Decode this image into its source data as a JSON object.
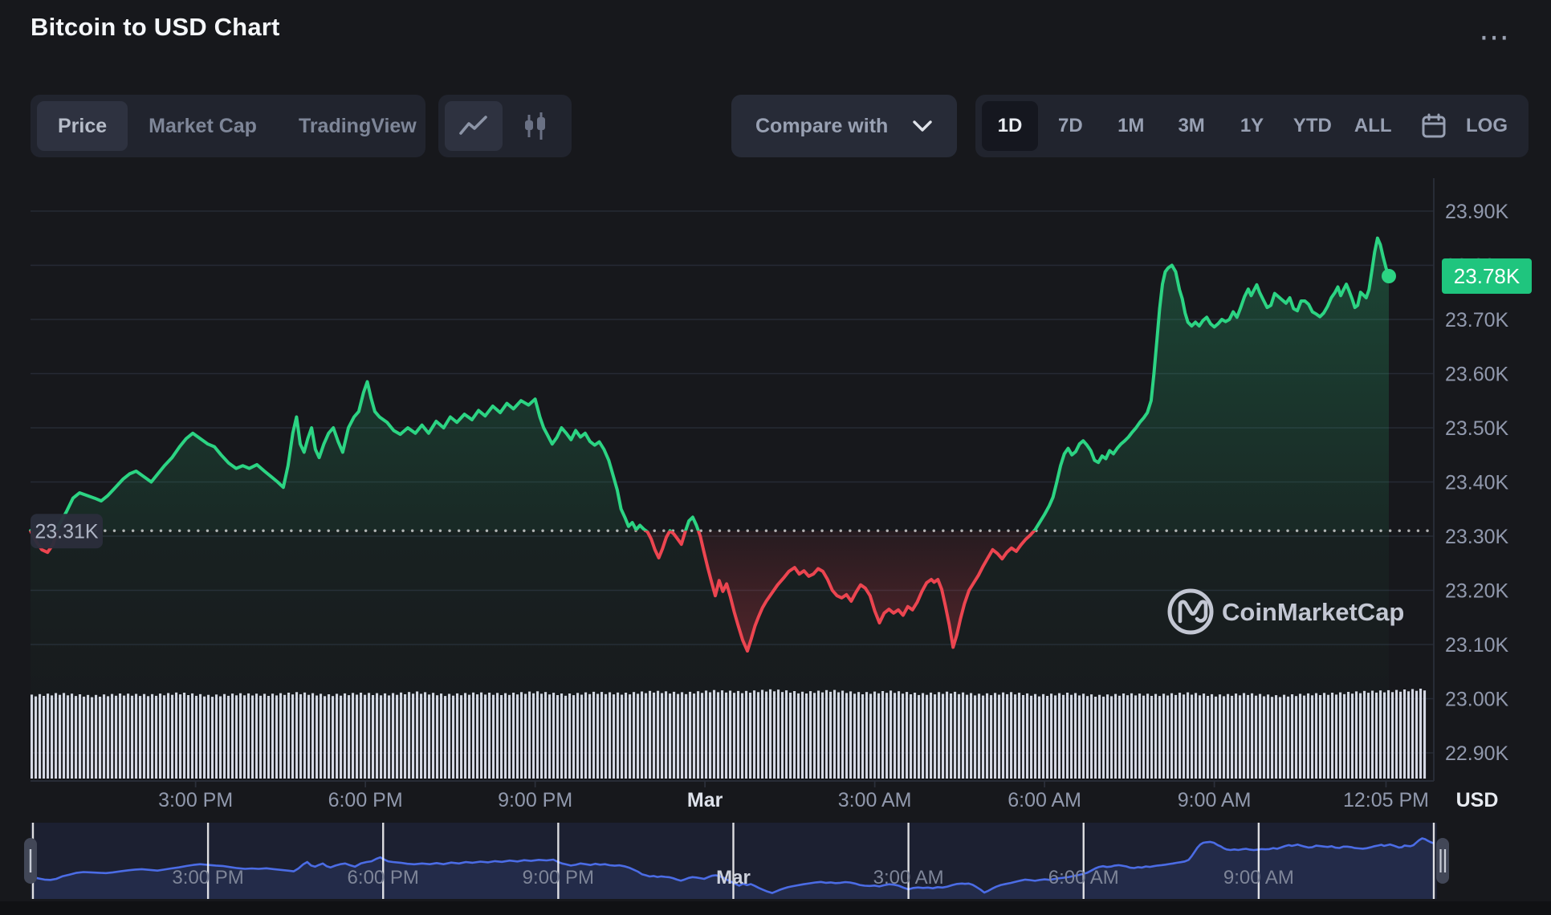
{
  "header": {
    "title": "Bitcoin to USD Chart",
    "more_glyph": "⋯"
  },
  "toolbar": {
    "view_tabs": [
      {
        "label": "Price",
        "active": true
      },
      {
        "label": "Market Cap",
        "active": false
      },
      {
        "label": "TradingView",
        "active": false
      }
    ],
    "chart_types": [
      {
        "name": "line-chart",
        "active": true
      },
      {
        "name": "candlestick-chart",
        "active": false
      }
    ],
    "compare": {
      "label": "Compare with"
    },
    "ranges": [
      {
        "label": "1D",
        "active": true
      },
      {
        "label": "7D",
        "active": false
      },
      {
        "label": "1M",
        "active": false
      },
      {
        "label": "3M",
        "active": false
      },
      {
        "label": "1Y",
        "active": false
      },
      {
        "label": "YTD",
        "active": false
      },
      {
        "label": "ALL",
        "active": false
      }
    ],
    "log_label": "LOG"
  },
  "chart": {
    "watermark": "CoinMarketCap",
    "unit_label": "USD"
  },
  "navigator": {
    "labels": [
      {
        "label": "3:00 PM",
        "minute": 180,
        "bold": false
      },
      {
        "label": "6:00 PM",
        "minute": 360,
        "bold": false
      },
      {
        "label": "9:00 PM",
        "minute": 540,
        "bold": false
      },
      {
        "label": "Mar",
        "minute": 720,
        "bold": true
      },
      {
        "label": "3:00 AM",
        "minute": 900,
        "bold": false
      },
      {
        "label": "6:00 AM",
        "minute": 1080,
        "bold": false
      },
      {
        "label": "9:00 AM",
        "minute": 1260,
        "bold": false
      }
    ],
    "separator_minutes": [
      0,
      180,
      360,
      540,
      720,
      900,
      1080,
      1260,
      1440
    ]
  },
  "colors": {
    "green": "#2cd483",
    "red": "#ec4550",
    "badge_green": "#1fc57e",
    "axis_text": "#9199ad",
    "grid": "#262a35",
    "axis_line": "#2b2f3a",
    "volume": "#d5d8e4",
    "nav_bg": "#1c2031",
    "nav_line": "#4b6ce5",
    "baseline_badge_bg": "#2b2e3b",
    "baseline_badge_text": "#aeb4c4",
    "watermark": "#c3c7d3"
  },
  "chart_data": {
    "type": "line",
    "title": "Bitcoin to USD Chart",
    "unit": "USD",
    "period": "1D",
    "open_k": 23.31,
    "last_k": 23.78,
    "low_k": 23.09,
    "high_k": 23.85,
    "ylim_k": [
      22.9,
      23.9
    ],
    "baseline": {
      "value": 23.31,
      "label": "23.31K"
    },
    "last": {
      "value": 23.78,
      "label": "23.78K"
    },
    "y_ticks": [
      {
        "label": "23.90K",
        "value": 23.9
      },
      {
        "label": "23.80K",
        "value": 23.8
      },
      {
        "label": "23.70K",
        "value": 23.7
      },
      {
        "label": "23.60K",
        "value": 23.6
      },
      {
        "label": "23.50K",
        "value": 23.5
      },
      {
        "label": "23.40K",
        "value": 23.4
      },
      {
        "label": "23.30K",
        "value": 23.3
      },
      {
        "label": "23.20K",
        "value": 23.2
      },
      {
        "label": "23.10K",
        "value": 23.1
      },
      {
        "label": "23.00K",
        "value": 23.0
      },
      {
        "label": "22.90K",
        "value": 22.9
      }
    ],
    "x_ticks": [
      {
        "label": "3:00 PM",
        "minute": 175,
        "bold": false
      },
      {
        "label": "6:00 PM",
        "minute": 355,
        "bold": false
      },
      {
        "label": "9:00 PM",
        "minute": 535,
        "bold": false
      },
      {
        "label": "Mar",
        "minute": 715,
        "bold": true
      },
      {
        "label": "3:00 AM",
        "minute": 895,
        "bold": false
      },
      {
        "label": "6:00 AM",
        "minute": 1075,
        "bold": false
      },
      {
        "label": "9:00 AM",
        "minute": 1255,
        "bold": false
      },
      {
        "label": "12:05 PM",
        "minute": 1437,
        "bold": false
      }
    ],
    "points": [
      [
        0,
        23.31
      ],
      [
        6,
        23.29
      ],
      [
        12,
        23.275
      ],
      [
        18,
        23.27
      ],
      [
        24,
        23.285
      ],
      [
        30,
        23.32
      ],
      [
        38,
        23.345
      ],
      [
        45,
        23.37
      ],
      [
        52,
        23.38
      ],
      [
        60,
        23.375
      ],
      [
        68,
        23.37
      ],
      [
        75,
        23.365
      ],
      [
        82,
        23.375
      ],
      [
        90,
        23.39
      ],
      [
        98,
        23.405
      ],
      [
        105,
        23.415
      ],
      [
        112,
        23.42
      ],
      [
        120,
        23.41
      ],
      [
        128,
        23.4
      ],
      [
        135,
        23.415
      ],
      [
        142,
        23.43
      ],
      [
        150,
        23.445
      ],
      [
        158,
        23.465
      ],
      [
        165,
        23.48
      ],
      [
        172,
        23.49
      ],
      [
        180,
        23.48
      ],
      [
        188,
        23.47
      ],
      [
        195,
        23.465
      ],
      [
        202,
        23.45
      ],
      [
        210,
        23.435
      ],
      [
        218,
        23.425
      ],
      [
        225,
        23.43
      ],
      [
        232,
        23.425
      ],
      [
        240,
        23.432
      ],
      [
        248,
        23.42
      ],
      [
        255,
        23.41
      ],
      [
        262,
        23.4
      ],
      [
        268,
        23.39
      ],
      [
        273,
        23.43
      ],
      [
        278,
        23.49
      ],
      [
        282,
        23.52
      ],
      [
        286,
        23.47
      ],
      [
        290,
        23.455
      ],
      [
        294,
        23.48
      ],
      [
        298,
        23.5
      ],
      [
        302,
        23.46
      ],
      [
        306,
        23.445
      ],
      [
        311,
        23.47
      ],
      [
        316,
        23.49
      ],
      [
        321,
        23.5
      ],
      [
        326,
        23.475
      ],
      [
        331,
        23.455
      ],
      [
        337,
        23.5
      ],
      [
        343,
        23.52
      ],
      [
        348,
        23.53
      ],
      [
        353,
        23.565
      ],
      [
        357,
        23.585
      ],
      [
        361,
        23.555
      ],
      [
        365,
        23.53
      ],
      [
        370,
        23.52
      ],
      [
        378,
        23.51
      ],
      [
        385,
        23.495
      ],
      [
        392,
        23.488
      ],
      [
        400,
        23.5
      ],
      [
        408,
        23.49
      ],
      [
        415,
        23.505
      ],
      [
        422,
        23.49
      ],
      [
        430,
        23.512
      ],
      [
        438,
        23.5
      ],
      [
        445,
        23.52
      ],
      [
        452,
        23.51
      ],
      [
        460,
        23.525
      ],
      [
        468,
        23.515
      ],
      [
        475,
        23.532
      ],
      [
        482,
        23.522
      ],
      [
        490,
        23.54
      ],
      [
        498,
        23.528
      ],
      [
        505,
        23.545
      ],
      [
        512,
        23.535
      ],
      [
        520,
        23.55
      ],
      [
        528,
        23.542
      ],
      [
        535,
        23.553
      ],
      [
        540,
        23.52
      ],
      [
        544,
        23.5
      ],
      [
        548,
        23.487
      ],
      [
        553,
        23.47
      ],
      [
        558,
        23.482
      ],
      [
        563,
        23.5
      ],
      [
        568,
        23.49
      ],
      [
        573,
        23.478
      ],
      [
        578,
        23.495
      ],
      [
        583,
        23.483
      ],
      [
        588,
        23.49
      ],
      [
        593,
        23.475
      ],
      [
        598,
        23.468
      ],
      [
        603,
        23.474
      ],
      [
        608,
        23.46
      ],
      [
        613,
        23.44
      ],
      [
        618,
        23.41
      ],
      [
        622,
        23.385
      ],
      [
        626,
        23.35
      ],
      [
        630,
        23.335
      ],
      [
        634,
        23.318
      ],
      [
        638,
        23.325
      ],
      [
        642,
        23.312
      ],
      [
        646,
        23.32
      ],
      [
        650,
        23.313
      ],
      [
        654,
        23.308
      ],
      [
        658,
        23.295
      ],
      [
        662,
        23.275
      ],
      [
        666,
        23.26
      ],
      [
        670,
        23.277
      ],
      [
        674,
        23.298
      ],
      [
        678,
        23.31
      ],
      [
        682,
        23.304
      ],
      [
        686,
        23.295
      ],
      [
        690,
        23.285
      ],
      [
        694,
        23.308
      ],
      [
        698,
        23.328
      ],
      [
        702,
        23.335
      ],
      [
        706,
        23.32
      ],
      [
        710,
        23.3
      ],
      [
        714,
        23.27
      ],
      [
        718,
        23.242
      ],
      [
        722,
        23.215
      ],
      [
        726,
        23.19
      ],
      [
        730,
        23.218
      ],
      [
        734,
        23.198
      ],
      [
        738,
        23.212
      ],
      [
        742,
        23.188
      ],
      [
        746,
        23.16
      ],
      [
        750,
        23.136
      ],
      [
        755,
        23.108
      ],
      [
        760,
        23.088
      ],
      [
        764,
        23.11
      ],
      [
        768,
        23.134
      ],
      [
        772,
        23.152
      ],
      [
        776,
        23.168
      ],
      [
        780,
        23.18
      ],
      [
        786,
        23.195
      ],
      [
        792,
        23.21
      ],
      [
        798,
        23.222
      ],
      [
        804,
        23.235
      ],
      [
        810,
        23.242
      ],
      [
        815,
        23.23
      ],
      [
        820,
        23.236
      ],
      [
        825,
        23.226
      ],
      [
        830,
        23.23
      ],
      [
        835,
        23.24
      ],
      [
        840,
        23.235
      ],
      [
        845,
        23.22
      ],
      [
        850,
        23.2
      ],
      [
        855,
        23.19
      ],
      [
        860,
        23.186
      ],
      [
        865,
        23.192
      ],
      [
        870,
        23.18
      ],
      [
        875,
        23.196
      ],
      [
        880,
        23.21
      ],
      [
        885,
        23.204
      ],
      [
        890,
        23.19
      ],
      [
        895,
        23.162
      ],
      [
        900,
        23.14
      ],
      [
        905,
        23.158
      ],
      [
        910,
        23.165
      ],
      [
        915,
        23.158
      ],
      [
        920,
        23.164
      ],
      [
        925,
        23.154
      ],
      [
        930,
        23.17
      ],
      [
        935,
        23.164
      ],
      [
        940,
        23.178
      ],
      [
        945,
        23.198
      ],
      [
        950,
        23.214
      ],
      [
        955,
        23.22
      ],
      [
        958,
        23.215
      ],
      [
        962,
        23.22
      ],
      [
        966,
        23.202
      ],
      [
        970,
        23.17
      ],
      [
        974,
        23.136
      ],
      [
        978,
        23.095
      ],
      [
        982,
        23.118
      ],
      [
        986,
        23.148
      ],
      [
        990,
        23.175
      ],
      [
        995,
        23.2
      ],
      [
        1000,
        23.214
      ],
      [
        1005,
        23.228
      ],
      [
        1010,
        23.245
      ],
      [
        1015,
        23.26
      ],
      [
        1020,
        23.275
      ],
      [
        1025,
        23.268
      ],
      [
        1030,
        23.258
      ],
      [
        1035,
        23.27
      ],
      [
        1040,
        23.278
      ],
      [
        1045,
        23.272
      ],
      [
        1050,
        23.284
      ],
      [
        1055,
        23.294
      ],
      [
        1060,
        23.302
      ],
      [
        1065,
        23.312
      ],
      [
        1070,
        23.326
      ],
      [
        1075,
        23.34
      ],
      [
        1080,
        23.356
      ],
      [
        1084,
        23.372
      ],
      [
        1088,
        23.4
      ],
      [
        1092,
        23.43
      ],
      [
        1096,
        23.452
      ],
      [
        1100,
        23.462
      ],
      [
        1104,
        23.45
      ],
      [
        1108,
        23.456
      ],
      [
        1112,
        23.47
      ],
      [
        1116,
        23.476
      ],
      [
        1120,
        23.468
      ],
      [
        1124,
        23.458
      ],
      [
        1128,
        23.44
      ],
      [
        1132,
        23.436
      ],
      [
        1136,
        23.448
      ],
      [
        1140,
        23.443
      ],
      [
        1144,
        23.458
      ],
      [
        1148,
        23.452
      ],
      [
        1152,
        23.462
      ],
      [
        1156,
        23.47
      ],
      [
        1160,
        23.476
      ],
      [
        1164,
        23.483
      ],
      [
        1168,
        23.492
      ],
      [
        1172,
        23.5
      ],
      [
        1176,
        23.51
      ],
      [
        1180,
        23.518
      ],
      [
        1184,
        23.528
      ],
      [
        1188,
        23.55
      ],
      [
        1191,
        23.6
      ],
      [
        1194,
        23.66
      ],
      [
        1197,
        23.72
      ],
      [
        1200,
        23.765
      ],
      [
        1203,
        23.788
      ],
      [
        1206,
        23.795
      ],
      [
        1210,
        23.8
      ],
      [
        1214,
        23.788
      ],
      [
        1218,
        23.755
      ],
      [
        1221,
        23.738
      ],
      [
        1224,
        23.712
      ],
      [
        1227,
        23.695
      ],
      [
        1231,
        23.688
      ],
      [
        1235,
        23.695
      ],
      [
        1239,
        23.688
      ],
      [
        1243,
        23.698
      ],
      [
        1247,
        23.704
      ],
      [
        1251,
        23.692
      ],
      [
        1255,
        23.686
      ],
      [
        1259,
        23.692
      ],
      [
        1263,
        23.7
      ],
      [
        1267,
        23.696
      ],
      [
        1271,
        23.7
      ],
      [
        1275,
        23.714
      ],
      [
        1279,
        23.704
      ],
      [
        1283,
        23.722
      ],
      [
        1287,
        23.742
      ],
      [
        1291,
        23.756
      ],
      [
        1294,
        23.744
      ],
      [
        1297,
        23.754
      ],
      [
        1300,
        23.764
      ],
      [
        1303,
        23.75
      ],
      [
        1307,
        23.736
      ],
      [
        1311,
        23.722
      ],
      [
        1315,
        23.726
      ],
      [
        1319,
        23.748
      ],
      [
        1323,
        23.742
      ],
      [
        1327,
        23.736
      ],
      [
        1331,
        23.73
      ],
      [
        1335,
        23.74
      ],
      [
        1339,
        23.72
      ],
      [
        1343,
        23.716
      ],
      [
        1347,
        23.734
      ],
      [
        1351,
        23.734
      ],
      [
        1355,
        23.728
      ],
      [
        1359,
        23.714
      ],
      [
        1363,
        23.71
      ],
      [
        1367,
        23.705
      ],
      [
        1371,
        23.712
      ],
      [
        1375,
        23.724
      ],
      [
        1379,
        23.74
      ],
      [
        1383,
        23.75
      ],
      [
        1386,
        23.76
      ],
      [
        1389,
        23.744
      ],
      [
        1392,
        23.755
      ],
      [
        1395,
        23.765
      ],
      [
        1398,
        23.752
      ],
      [
        1401,
        23.738
      ],
      [
        1404,
        23.722
      ],
      [
        1407,
        23.726
      ],
      [
        1410,
        23.75
      ],
      [
        1413,
        23.745
      ],
      [
        1416,
        23.74
      ],
      [
        1419,
        23.755
      ],
      [
        1422,
        23.79
      ],
      [
        1425,
        23.825
      ],
      [
        1428,
        23.85
      ],
      [
        1431,
        23.838
      ],
      [
        1434,
        23.815
      ],
      [
        1437,
        23.795
      ],
      [
        1440,
        23.78
      ]
    ],
    "volume_relative": [
      0.42,
      0.55,
      0.38,
      0.5,
      0.45,
      0.58,
      0.4,
      0.52,
      0.47,
      0.6,
      0.44,
      0.56,
      0.5,
      0.64,
      0.46,
      0.58,
      0.52,
      0.66,
      0.48,
      0.62,
      0.55,
      0.7,
      0.58,
      0.74,
      0.66,
      0.8,
      0.62,
      0.76,
      0.58,
      0.7,
      0.52,
      0.64,
      0.48,
      0.6,
      0.44,
      0.56,
      0.4,
      0.52,
      0.46,
      0.58,
      0.42,
      0.54,
      0.38,
      0.5,
      0.56,
      0.68,
      0.74,
      0.85
    ]
  }
}
